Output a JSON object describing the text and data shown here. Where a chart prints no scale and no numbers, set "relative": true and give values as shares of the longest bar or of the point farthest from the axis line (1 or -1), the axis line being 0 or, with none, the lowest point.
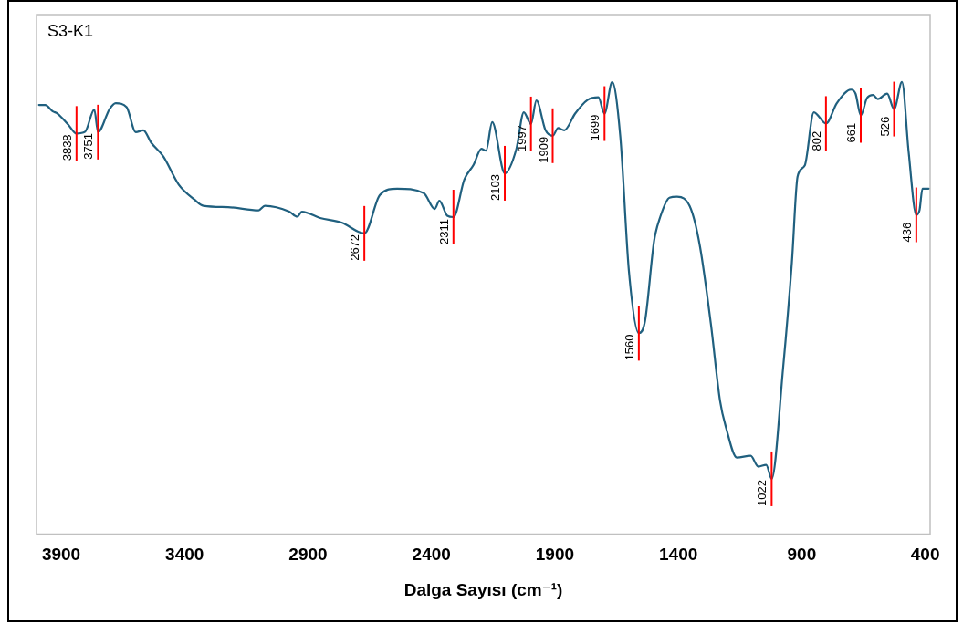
{
  "chart_data": {
    "type": "line",
    "title": "S3-K1",
    "xlabel": "Dalga Sayısı (cm⁻¹)",
    "relative": true,
    "marker": "none",
    "xlim": [
      4000,
      380
    ],
    "xticks": [
      3900,
      3400,
      2900,
      2400,
      1900,
      1400,
      900,
      400
    ],
    "series": [
      {
        "color": "#20607f",
        "x": [
          3990,
          3965,
          3934,
          3915,
          3872,
          3838,
          3803,
          3766,
          3751,
          3704,
          3679,
          3635,
          3598,
          3567,
          3536,
          3486,
          3424,
          3361,
          3324,
          3224,
          3100,
          3075,
          2976,
          2944,
          2925,
          2851,
          2764,
          2672,
          2609,
          2539,
          2431,
          2387,
          2368,
          2336,
          2311,
          2267,
          2229,
          2198,
          2179,
          2154,
          2103,
          2056,
          2026,
          1997,
          1975,
          1938,
          1909,
          1887,
          1862,
          1818,
          1768,
          1724,
          1699,
          1668,
          1635,
          1600,
          1560,
          1535,
          1498,
          1473,
          1436,
          1405,
          1349,
          1312,
          1268,
          1231,
          1206,
          1163,
          1107,
          1076,
          1044,
          1022,
          976,
          940,
          917,
          888,
          851,
          802,
          758,
          701,
          682,
          661,
          636,
          611,
          592,
          554,
          526,
          494,
          467,
          436,
          423,
          411,
          386
        ],
        "values": [
          0.949,
          0.949,
          0.935,
          0.93,
          0.906,
          0.886,
          0.89,
          0.939,
          0.889,
          0.94,
          0.953,
          0.944,
          0.889,
          0.893,
          0.866,
          0.835,
          0.773,
          0.74,
          0.726,
          0.723,
          0.716,
          0.726,
          0.713,
          0.702,
          0.713,
          0.699,
          0.689,
          0.665,
          0.75,
          0.764,
          0.754,
          0.719,
          0.737,
          0.704,
          0.701,
          0.784,
          0.817,
          0.852,
          0.848,
          0.911,
          0.798,
          0.852,
          0.933,
          0.907,
          0.959,
          0.893,
          0.881,
          0.898,
          0.893,
          0.93,
          0.96,
          0.966,
          0.93,
          1.0,
          0.879,
          0.58,
          0.444,
          0.471,
          0.649,
          0.702,
          0.744,
          0.746,
          0.719,
          0.635,
          0.464,
          0.294,
          0.234,
          0.169,
          0.173,
          0.149,
          0.153,
          0.122,
          0.365,
          0.601,
          0.791,
          0.815,
          0.933,
          0.908,
          0.953,
          0.983,
          0.974,
          0.926,
          0.964,
          0.971,
          0.962,
          0.974,
          0.94,
          1.0,
          0.845,
          0.706,
          0.716,
          0.764,
          0.764
        ]
      }
    ],
    "annotations": [
      {
        "text": "3838",
        "x": 3838,
        "y": 0.886
      },
      {
        "text": "3751",
        "x": 3751,
        "y": 0.889
      },
      {
        "text": "2672",
        "x": 2672,
        "y": 0.665
      },
      {
        "text": "2311",
        "x": 2311,
        "y": 0.701
      },
      {
        "text": "2103",
        "x": 2103,
        "y": 0.798
      },
      {
        "text": "1997",
        "x": 1997,
        "y": 0.907
      },
      {
        "text": "1909",
        "x": 1909,
        "y": 0.881
      },
      {
        "text": "1699",
        "x": 1699,
        "y": 0.93
      },
      {
        "text": "1560",
        "x": 1560,
        "y": 0.444
      },
      {
        "text": "1022",
        "x": 1022,
        "y": 0.122
      },
      {
        "text": "802",
        "x": 802,
        "y": 0.908
      },
      {
        "text": "661",
        "x": 661,
        "y": 0.926
      },
      {
        "text": "526",
        "x": 526,
        "y": 0.94
      },
      {
        "text": "436",
        "x": 436,
        "y": 0.706
      }
    ]
  }
}
